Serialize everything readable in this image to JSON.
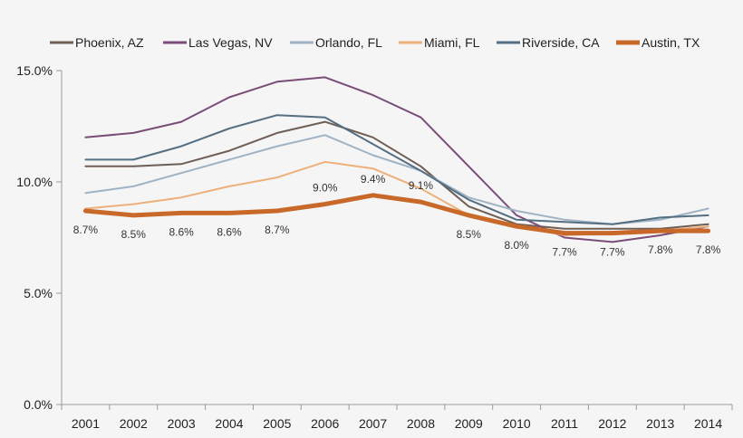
{
  "chart_data": {
    "type": "line",
    "categories": [
      "2001",
      "2002",
      "2003",
      "2004",
      "2005",
      "2006",
      "2007",
      "2008",
      "2009",
      "2010",
      "2011",
      "2012",
      "2013",
      "2014"
    ],
    "ylim": [
      0,
      15
    ],
    "yticks": [
      0,
      5,
      10,
      15
    ],
    "ytick_labels": [
      "0.0%",
      "5.0%",
      "10.0%",
      "15.0%"
    ],
    "legend_position": "top",
    "grid": false,
    "series": [
      {
        "name": "Phoenix, AZ",
        "color": "#6e5e55",
        "values": [
          10.7,
          10.7,
          10.8,
          11.4,
          12.2,
          12.7,
          12.0,
          10.7,
          8.9,
          8.1,
          7.9,
          7.9,
          7.9,
          8.1
        ]
      },
      {
        "name": "Las Vegas, NV",
        "color": "#7a4d79",
        "values": [
          12.0,
          12.2,
          12.7,
          13.8,
          14.5,
          14.7,
          13.9,
          12.9,
          10.7,
          8.5,
          7.5,
          7.3,
          7.6,
          8.0
        ]
      },
      {
        "name": "Orlando, FL",
        "color": "#9fb3c4",
        "values": [
          9.5,
          9.8,
          10.4,
          11.0,
          11.6,
          12.1,
          11.2,
          10.5,
          9.3,
          8.7,
          8.3,
          8.1,
          8.3,
          8.8
        ]
      },
      {
        "name": "Miami, FL",
        "color": "#eeb07a",
        "values": [
          8.8,
          9.0,
          9.3,
          9.8,
          10.2,
          10.9,
          10.6,
          9.7,
          8.5,
          8.0,
          7.6,
          7.7,
          7.8,
          8.0
        ]
      },
      {
        "name": "Riverside, CA",
        "color": "#546e82",
        "values": [
          11.0,
          11.0,
          11.6,
          12.4,
          13.0,
          12.9,
          11.7,
          10.5,
          9.2,
          8.3,
          8.2,
          8.1,
          8.4,
          8.5
        ]
      },
      {
        "name": "Austin, TX",
        "color": "#c8692a",
        "width": 5,
        "values": [
          8.7,
          8.5,
          8.6,
          8.6,
          8.7,
          9.0,
          9.4,
          9.1,
          8.5,
          8.0,
          7.7,
          7.7,
          7.8,
          7.8
        ]
      }
    ],
    "data_labels": {
      "series": "Austin, TX",
      "labels": [
        "8.7%",
        "8.5%",
        "8.6%",
        "8.6%",
        "8.7%",
        "9.0%",
        "9.4%",
        "9.1%",
        "8.5%",
        "8.0%",
        "7.7%",
        "7.7%",
        "7.8%",
        "7.8%"
      ],
      "above": [
        false,
        false,
        false,
        false,
        false,
        true,
        true,
        true,
        false,
        false,
        false,
        false,
        false,
        false
      ]
    }
  }
}
